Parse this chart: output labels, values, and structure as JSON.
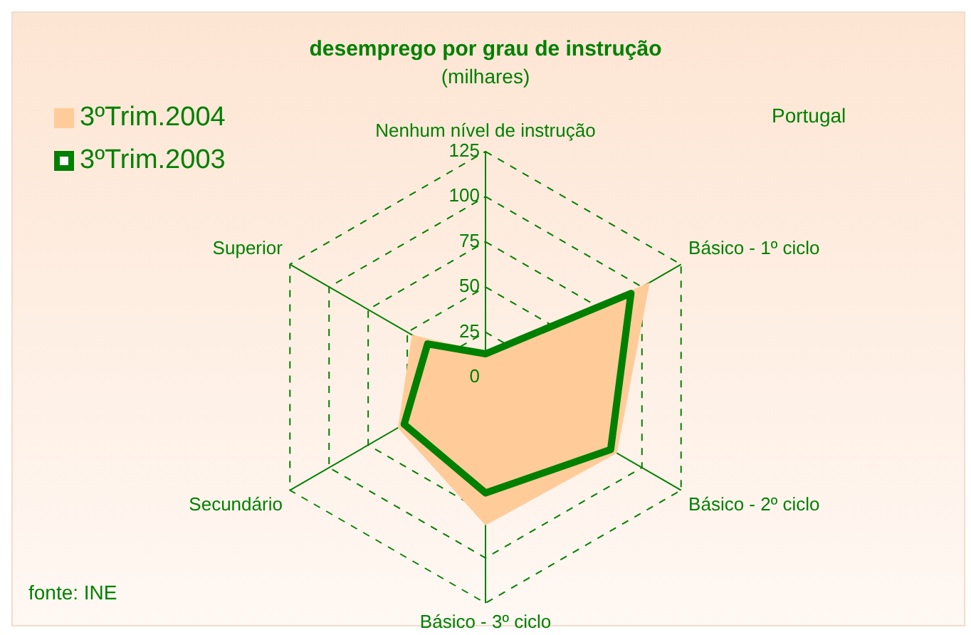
{
  "chart_data": {
    "type": "radar",
    "title": "desemprego por grau de instrução",
    "subtitle": "(milhares)",
    "categories": [
      "Nenhum nível de instrução",
      "Básico - 1º ciclo",
      "Básico - 2º ciclo",
      "Básico - 3º ciclo",
      "Secundário",
      "Superior"
    ],
    "series": [
      {
        "name": "3ºTrim.2004",
        "color": "#ffcc99",
        "values": [
          14,
          105,
          84,
          82,
          56,
          47
        ]
      },
      {
        "name": "3ºTrim.2003",
        "color": "#008000",
        "values": [
          13,
          93,
          80,
          64,
          52,
          37
        ]
      }
    ],
    "ylim": [
      0,
      125
    ],
    "yticks": [
      0,
      25,
      50,
      75,
      100,
      125
    ],
    "grid": true,
    "legend": "top left",
    "marker": "none",
    "annotations": [
      "Portugal",
      "fonte: INE"
    ]
  }
}
